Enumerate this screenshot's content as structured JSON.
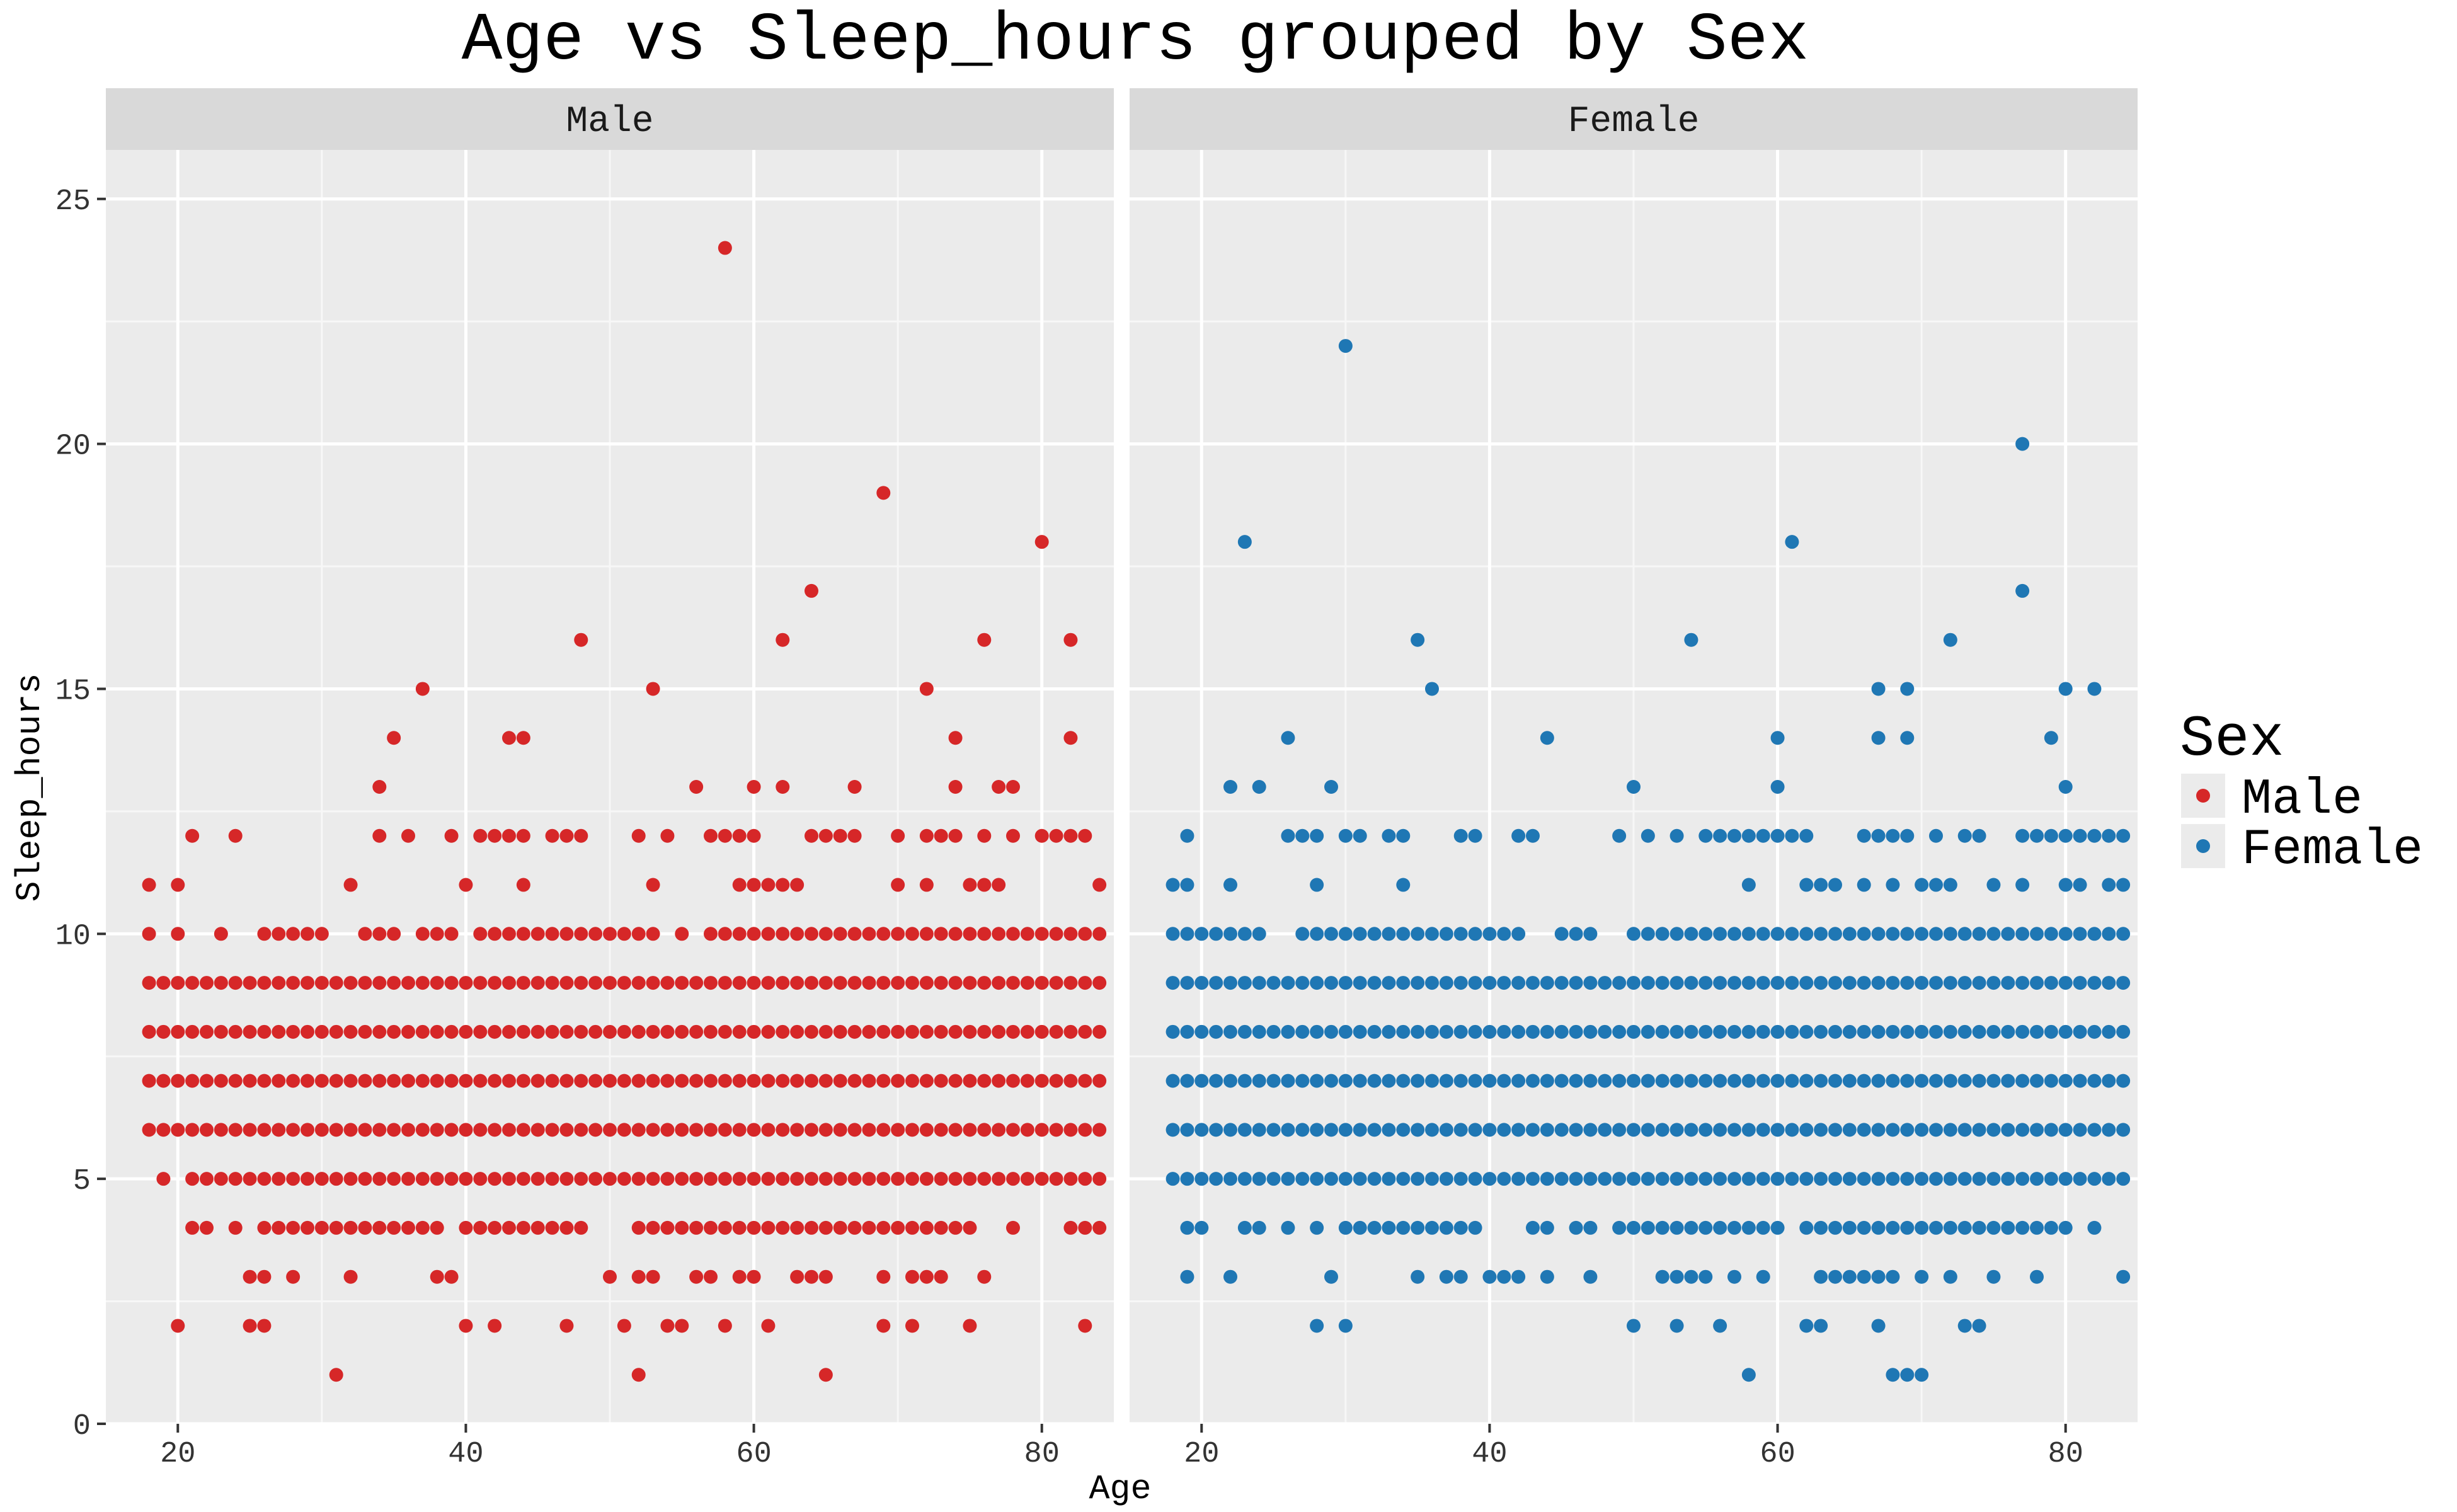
{
  "chart_data": {
    "type": "scatter",
    "title": "Age vs Sleep_hours grouped by Sex",
    "xlabel": "Age",
    "ylabel": "Sleep_hours",
    "xlim": [
      15,
      85
    ],
    "ylim": [
      0,
      26
    ],
    "xticks": [
      20,
      40,
      60,
      80
    ],
    "yticks": [
      0,
      5,
      10,
      15,
      20,
      25
    ],
    "grid": true,
    "legend": {
      "title": "Sex",
      "position": "right"
    },
    "facets": [
      {
        "name": "Male",
        "color": "#d62728",
        "age_range": [
          18,
          84
        ],
        "dense_rows": [
          {
            "y": 10,
            "gaps": [
              19,
              21,
              22,
              24,
              25,
              31,
              32,
              36,
              40,
              54,
              56
            ]
          },
          {
            "y": 9,
            "gaps": []
          },
          {
            "y": 8,
            "gaps": []
          },
          {
            "y": 7,
            "gaps": []
          },
          {
            "y": 6,
            "gaps": []
          },
          {
            "y": 5,
            "gaps": [
              18,
              20
            ]
          },
          {
            "y": 4,
            "gaps": [
              18,
              19,
              20,
              23,
              25,
              39,
              49,
              50,
              51,
              76,
              77,
              79,
              80,
              81
            ]
          }
        ],
        "points": [
          [
            18,
            11
          ],
          [
            20,
            11
          ],
          [
            21,
            12
          ],
          [
            24,
            12
          ],
          [
            32,
            11
          ],
          [
            34,
            12
          ],
          [
            36,
            12
          ],
          [
            39,
            12
          ],
          [
            40,
            11
          ],
          [
            41,
            12
          ],
          [
            42,
            12
          ],
          [
            43,
            12
          ],
          [
            44,
            11
          ],
          [
            44,
            12
          ],
          [
            46,
            12
          ],
          [
            47,
            12
          ],
          [
            48,
            12
          ],
          [
            52,
            12
          ],
          [
            53,
            11
          ],
          [
            54,
            12
          ],
          [
            57,
            12
          ],
          [
            58,
            12
          ],
          [
            59,
            12
          ],
          [
            59,
            11
          ],
          [
            60,
            12
          ],
          [
            60,
            11
          ],
          [
            61,
            11
          ],
          [
            62,
            11
          ],
          [
            63,
            11
          ],
          [
            64,
            12
          ],
          [
            65,
            12
          ],
          [
            66,
            12
          ],
          [
            67,
            12
          ],
          [
            70,
            12
          ],
          [
            70,
            11
          ],
          [
            72,
            12
          ],
          [
            72,
            11
          ],
          [
            73,
            12
          ],
          [
            74,
            12
          ],
          [
            75,
            11
          ],
          [
            76,
            12
          ],
          [
            76,
            11
          ],
          [
            77,
            11
          ],
          [
            78,
            12
          ],
          [
            80,
            12
          ],
          [
            81,
            12
          ],
          [
            82,
            12
          ],
          [
            83,
            12
          ],
          [
            84,
            11
          ],
          [
            34,
            13
          ],
          [
            35,
            14
          ],
          [
            37,
            15
          ],
          [
            43,
            14
          ],
          [
            44,
            14
          ],
          [
            48,
            16
          ],
          [
            53,
            15
          ],
          [
            56,
            13
          ],
          [
            58,
            24
          ],
          [
            60,
            13
          ],
          [
            62,
            16
          ],
          [
            62,
            13
          ],
          [
            64,
            17
          ],
          [
            67,
            13
          ],
          [
            69,
            19
          ],
          [
            72,
            15
          ],
          [
            74,
            14
          ],
          [
            74,
            13
          ],
          [
            76,
            16
          ],
          [
            77,
            13
          ],
          [
            78,
            13
          ],
          [
            80,
            18
          ],
          [
            82,
            16
          ],
          [
            82,
            14
          ],
          [
            25,
            3
          ],
          [
            26,
            3
          ],
          [
            28,
            3
          ],
          [
            32,
            3
          ],
          [
            38,
            3
          ],
          [
            39,
            3
          ],
          [
            50,
            3
          ],
          [
            52,
            3
          ],
          [
            53,
            3
          ],
          [
            56,
            3
          ],
          [
            57,
            3
          ],
          [
            59,
            3
          ],
          [
            60,
            3
          ],
          [
            63,
            3
          ],
          [
            64,
            3
          ],
          [
            65,
            3
          ],
          [
            69,
            3
          ],
          [
            71,
            3
          ],
          [
            72,
            3
          ],
          [
            73,
            3
          ],
          [
            76,
            3
          ],
          [
            20,
            2
          ],
          [
            25,
            2
          ],
          [
            26,
            2
          ],
          [
            40,
            2
          ],
          [
            42,
            2
          ],
          [
            47,
            2
          ],
          [
            51,
            2
          ],
          [
            54,
            2
          ],
          [
            55,
            2
          ],
          [
            58,
            2
          ],
          [
            61,
            2
          ],
          [
            69,
            2
          ],
          [
            71,
            2
          ],
          [
            75,
            2
          ],
          [
            83,
            2
          ],
          [
            31,
            1
          ],
          [
            52,
            1
          ],
          [
            65,
            1
          ]
        ]
      },
      {
        "name": "Female",
        "color": "#1f77b4",
        "age_range": [
          18,
          84
        ],
        "dense_rows": [
          {
            "y": 10,
            "gaps": [
              25,
              26,
              43,
              44,
              48,
              49
            ]
          },
          {
            "y": 9,
            "gaps": []
          },
          {
            "y": 8,
            "gaps": []
          },
          {
            "y": 7,
            "gaps": []
          },
          {
            "y": 6,
            "gaps": []
          },
          {
            "y": 5,
            "gaps": []
          },
          {
            "y": 4,
            "gaps": [
              18,
              21,
              22,
              25,
              27,
              29,
              40,
              41,
              42,
              45,
              48,
              61,
              81,
              83,
              84
            ]
          }
        ],
        "points": [
          [
            18,
            11
          ],
          [
            19,
            11
          ],
          [
            19,
            12
          ],
          [
            22,
            11
          ],
          [
            26,
            12
          ],
          [
            27,
            12
          ],
          [
            28,
            12
          ],
          [
            28,
            11
          ],
          [
            30,
            12
          ],
          [
            31,
            12
          ],
          [
            33,
            12
          ],
          [
            34,
            12
          ],
          [
            34,
            11
          ],
          [
            38,
            12
          ],
          [
            39,
            12
          ],
          [
            42,
            12
          ],
          [
            43,
            12
          ],
          [
            49,
            12
          ],
          [
            51,
            12
          ],
          [
            53,
            12
          ],
          [
            55,
            12
          ],
          [
            56,
            12
          ],
          [
            57,
            12
          ],
          [
            58,
            12
          ],
          [
            58,
            11
          ],
          [
            59,
            12
          ],
          [
            60,
            12
          ],
          [
            61,
            12
          ],
          [
            62,
            12
          ],
          [
            62,
            11
          ],
          [
            63,
            11
          ],
          [
            64,
            11
          ],
          [
            66,
            12
          ],
          [
            66,
            11
          ],
          [
            67,
            12
          ],
          [
            68,
            12
          ],
          [
            68,
            11
          ],
          [
            69,
            12
          ],
          [
            70,
            11
          ],
          [
            71,
            12
          ],
          [
            71,
            11
          ],
          [
            72,
            11
          ],
          [
            73,
            12
          ],
          [
            74,
            12
          ],
          [
            75,
            11
          ],
          [
            77,
            12
          ],
          [
            77,
            11
          ],
          [
            78,
            12
          ],
          [
            79,
            12
          ],
          [
            80,
            12
          ],
          [
            80,
            11
          ],
          [
            81,
            12
          ],
          [
            81,
            11
          ],
          [
            82,
            12
          ],
          [
            83,
            12
          ],
          [
            83,
            11
          ],
          [
            84,
            12
          ],
          [
            84,
            11
          ],
          [
            22,
            13
          ],
          [
            23,
            18
          ],
          [
            24,
            13
          ],
          [
            26,
            14
          ],
          [
            29,
            13
          ],
          [
            30,
            22
          ],
          [
            35,
            16
          ],
          [
            36,
            15
          ],
          [
            44,
            14
          ],
          [
            50,
            13
          ],
          [
            54,
            16
          ],
          [
            60,
            14
          ],
          [
            60,
            13
          ],
          [
            61,
            18
          ],
          [
            67,
            15
          ],
          [
            67,
            14
          ],
          [
            69,
            15
          ],
          [
            69,
            14
          ],
          [
            72,
            16
          ],
          [
            77,
            20
          ],
          [
            77,
            17
          ],
          [
            79,
            14
          ],
          [
            80,
            15
          ],
          [
            80,
            13
          ],
          [
            82,
            15
          ],
          [
            19,
            3
          ],
          [
            22,
            3
          ],
          [
            29,
            3
          ],
          [
            35,
            3
          ],
          [
            37,
            3
          ],
          [
            38,
            3
          ],
          [
            40,
            3
          ],
          [
            41,
            3
          ],
          [
            42,
            3
          ],
          [
            44,
            3
          ],
          [
            47,
            3
          ],
          [
            52,
            3
          ],
          [
            53,
            3
          ],
          [
            54,
            3
          ],
          [
            55,
            3
          ],
          [
            57,
            3
          ],
          [
            59,
            3
          ],
          [
            63,
            3
          ],
          [
            64,
            3
          ],
          [
            65,
            3
          ],
          [
            66,
            3
          ],
          [
            67,
            3
          ],
          [
            68,
            3
          ],
          [
            70,
            3
          ],
          [
            72,
            3
          ],
          [
            75,
            3
          ],
          [
            78,
            3
          ],
          [
            84,
            3
          ],
          [
            28,
            2
          ],
          [
            30,
            2
          ],
          [
            50,
            2
          ],
          [
            53,
            2
          ],
          [
            56,
            2
          ],
          [
            62,
            2
          ],
          [
            63,
            2
          ],
          [
            67,
            2
          ],
          [
            73,
            2
          ],
          [
            74,
            2
          ],
          [
            58,
            1
          ],
          [
            68,
            1
          ],
          [
            69,
            1
          ],
          [
            70,
            1
          ]
        ]
      }
    ]
  }
}
